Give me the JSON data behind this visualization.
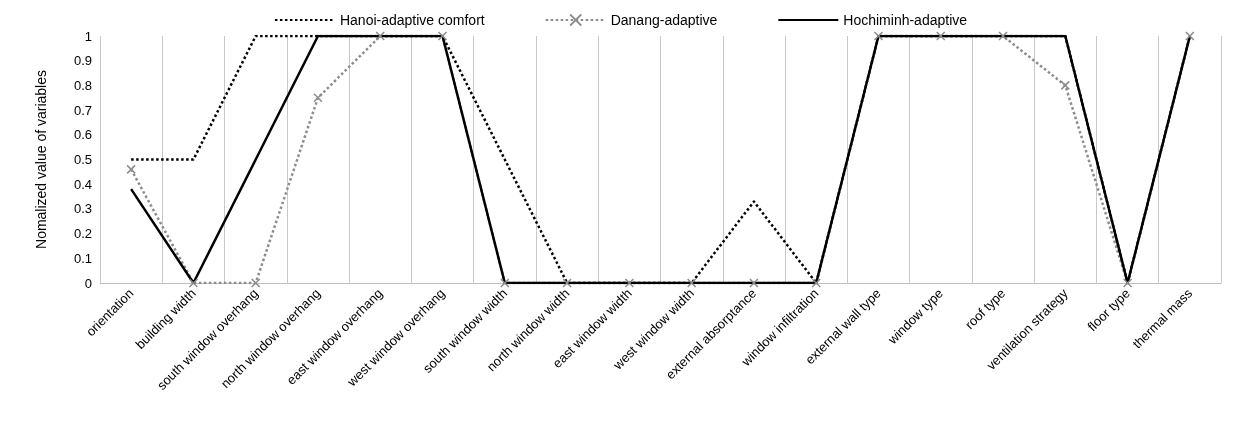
{
  "chart_data": {
    "type": "line",
    "ylabel": "Nomalized value of variables",
    "categories": [
      "orientation",
      "building width",
      "south window overhang",
      "north window overhang",
      "east window overhang",
      "west window overhang",
      "south window width",
      "north window width",
      "east window width",
      "west window width",
      "external absorptance",
      "window infiltration",
      "external wall type",
      "window type",
      "roof type",
      "ventilation strategy",
      "floor type",
      "thermal mass"
    ],
    "series": [
      {
        "name": "Hanoi-adaptive comfort",
        "color": "#000000",
        "line_style": "dotted",
        "marker": "none",
        "values": [
          0.5,
          0.5,
          1,
          1,
          1,
          1,
          0.5,
          0,
          0,
          0,
          0.33,
          0,
          1,
          1,
          1,
          1,
          0,
          1
        ]
      },
      {
        "name": "Danang-adaptive",
        "color": "#8c8c8c",
        "line_style": "dotted",
        "marker": "cross",
        "values": [
          0.46,
          0,
          0,
          0.75,
          1,
          1,
          0,
          0,
          0,
          0,
          0,
          0,
          1,
          1,
          1,
          0.8,
          0,
          1
        ]
      },
      {
        "name": "Hochiminh-adaptive",
        "color": "#000000",
        "line_style": "solid",
        "marker": "none",
        "values": [
          0.38,
          0,
          0.5,
          1,
          1,
          1,
          0,
          0,
          0,
          0,
          0,
          0,
          1,
          1,
          1,
          1,
          0,
          1
        ]
      }
    ],
    "ylim": [
      0,
      1
    ],
    "yticks": [
      0,
      0.1,
      0.2,
      0.3,
      0.4,
      0.5,
      0.6,
      0.7,
      0.8,
      0.9,
      1
    ],
    "grid": "x",
    "legend": "top"
  }
}
